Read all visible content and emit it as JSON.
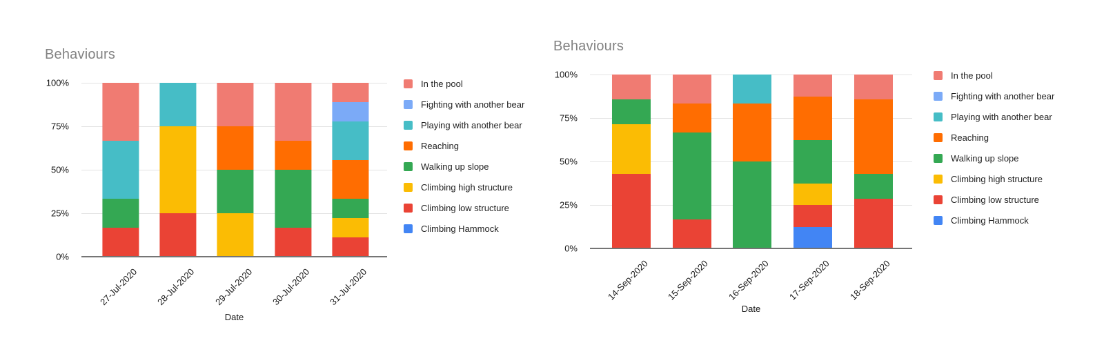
{
  "chart_data": [
    {
      "type": "bar",
      "stacked": true,
      "percent_axis": true,
      "title": "Behaviours",
      "xlabel": "Date",
      "ylabel": "",
      "ylim": [
        0,
        100
      ],
      "yticks": [
        "0%",
        "25%",
        "50%",
        "75%",
        "100%"
      ],
      "grid": true,
      "legend_position": "right",
      "categories": [
        "27-Jul-2020",
        "28-Jul-2020",
        "29-Jul-2020",
        "30-Jul-2020",
        "31-Jul-2020"
      ],
      "series": [
        {
          "name": "Climbing Hammock",
          "color": "#4285F4",
          "values": [
            0,
            0,
            0,
            0,
            0
          ]
        },
        {
          "name": "Climbing low structure",
          "color": "#EA4335",
          "values": [
            16.7,
            25,
            0,
            16.7,
            11.1
          ]
        },
        {
          "name": "Climbing high structure",
          "color": "#FBBC04",
          "values": [
            0,
            50,
            25,
            0,
            11.1
          ]
        },
        {
          "name": "Walking up slope",
          "color": "#34A853",
          "values": [
            16.7,
            0,
            25,
            33.3,
            11.1
          ]
        },
        {
          "name": "Reaching",
          "color": "#FF6D01",
          "values": [
            0,
            0,
            25,
            16.7,
            22.2
          ]
        },
        {
          "name": "Playing with another bear",
          "color": "#46BDC6",
          "values": [
            33.3,
            25,
            0,
            0,
            22.2
          ]
        },
        {
          "name": "Fighting with another bear",
          "color": "#7BAAF7",
          "values": [
            0,
            0,
            0,
            0,
            11.1
          ]
        },
        {
          "name": "In the pool",
          "color": "#F07B72",
          "values": [
            33.3,
            0,
            25,
            33.3,
            11.1
          ]
        }
      ]
    },
    {
      "type": "bar",
      "stacked": true,
      "percent_axis": true,
      "title": "Behaviours",
      "xlabel": "Date",
      "ylabel": "",
      "ylim": [
        0,
        100
      ],
      "yticks": [
        "0%",
        "25%",
        "50%",
        "75%",
        "100%"
      ],
      "grid": true,
      "legend_position": "right",
      "categories": [
        "14-Sep-2020",
        "15-Sep-2020",
        "16-Sep-2020",
        "17-Sep-2020",
        "18-Sep-2020"
      ],
      "series": [
        {
          "name": "Climbing Hammock",
          "color": "#4285F4",
          "values": [
            0,
            0,
            0,
            12.5,
            0
          ]
        },
        {
          "name": "Climbing low structure",
          "color": "#EA4335",
          "values": [
            42.9,
            16.7,
            0,
            12.5,
            28.6
          ]
        },
        {
          "name": "Climbing high structure",
          "color": "#FBBC04",
          "values": [
            28.6,
            0,
            0,
            12.5,
            0
          ]
        },
        {
          "name": "Walking up slope",
          "color": "#34A853",
          "values": [
            14.3,
            50,
            50,
            25,
            14.3
          ]
        },
        {
          "name": "Reaching",
          "color": "#FF6D01",
          "values": [
            0,
            16.7,
            33.3,
            25,
            42.9
          ]
        },
        {
          "name": "Playing with another bear",
          "color": "#46BDC6",
          "values": [
            0,
            0,
            16.7,
            0,
            0
          ]
        },
        {
          "name": "Fighting with another bear",
          "color": "#7BAAF7",
          "values": [
            0,
            0,
            0,
            0,
            0
          ]
        },
        {
          "name": "In the pool",
          "color": "#F07B72",
          "values": [
            14.3,
            16.7,
            0,
            12.5,
            14.3
          ]
        }
      ]
    }
  ]
}
